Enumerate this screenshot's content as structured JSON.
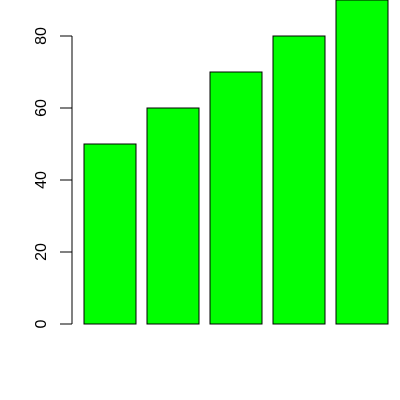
{
  "chart_data": {
    "type": "bar",
    "categories": [
      "",
      "",
      "",
      "",
      ""
    ],
    "values": [
      50,
      60,
      70,
      80,
      90
    ],
    "title": "",
    "xlabel": "",
    "ylabel": "",
    "ylim": [
      0,
      90
    ],
    "yticks": [
      "0",
      "20",
      "40",
      "60",
      "80"
    ],
    "bar_color": "#00ff00",
    "bar_border_color": "#000000",
    "grid": false,
    "legend": "none"
  }
}
